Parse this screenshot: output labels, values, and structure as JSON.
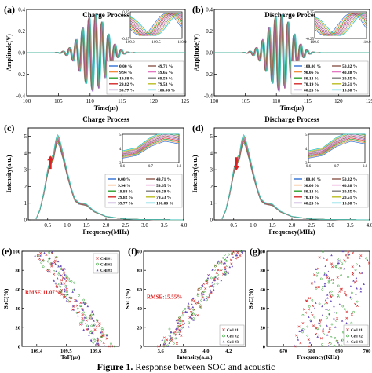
{
  "caption": {
    "label": "Figure 1.",
    "text": "Response between SOC and acoustic"
  },
  "colors": {
    "palette": [
      "#2f6fd6",
      "#f08c3a",
      "#2ca02c",
      "#d62728",
      "#9467bd",
      "#8c564b",
      "#e377c2",
      "#7f7f7f",
      "#bcbd22",
      "#17becf",
      "#4fb3d9"
    ],
    "arrow": "#e02020",
    "rmse_text": "#e02020",
    "cell1": "#d62728",
    "cell2": "#2ca02c",
    "cell3": "#6a4fbd"
  },
  "chart_data": [
    {
      "id": "a",
      "panel_label": "(a)",
      "type": "line",
      "title": "Charge Process",
      "xlabel": "Time(μs)",
      "ylabel": "Amplitude(V)",
      "xlim": [
        100,
        125
      ],
      "ylim": [
        -0.4,
        0.4
      ],
      "xticks": [
        "100",
        "105",
        "110",
        "115",
        "120",
        "125"
      ],
      "yticks": [
        "-0.4",
        "-0.2",
        "0.0",
        "0.2",
        "0.4"
      ],
      "signal": {
        "center": 110.6,
        "amplitude": 0.36,
        "period": 1.02,
        "width": 1.9
      },
      "series": [
        {
          "name": "0.00 %"
        },
        {
          "name": "9.94 %"
        },
        {
          "name": "19.88 %"
        },
        {
          "name": "29.82 %"
        },
        {
          "name": "39.77 %"
        },
        {
          "name": "49.71 %"
        },
        {
          "name": "59.65 %"
        },
        {
          "name": "69.59 %"
        },
        {
          "name": "79.53 %"
        },
        {
          "name": "100.00 %"
        }
      ],
      "legend_position": "bottom-right",
      "inset": {
        "xlim": [
          109,
          110
        ],
        "ylim": [
          -0.25,
          0.25
        ],
        "xticks": [
          "109.0",
          "109.5",
          "110.0"
        ],
        "yticks": [
          "0.25",
          "-0.25"
        ]
      }
    },
    {
      "id": "b",
      "panel_label": "(b)",
      "type": "line",
      "title": "Discharge Process",
      "xlabel": "Time(μs)",
      "ylabel": "Amplitude(V)",
      "xlim": [
        100,
        125
      ],
      "ylim": [
        -0.4,
        0.4
      ],
      "xticks": [
        "100",
        "105",
        "110",
        "115",
        "120",
        "125"
      ],
      "yticks": [
        "-0.4",
        "-0.2",
        "0.0",
        "0.2",
        "0.4"
      ],
      "signal": {
        "center": 110.6,
        "amplitude": 0.36,
        "period": 1.02,
        "width": 1.9
      },
      "series": [
        {
          "name": "100.00 %"
        },
        {
          "name": "90.06 %"
        },
        {
          "name": "80.13 %"
        },
        {
          "name": "70.19 %"
        },
        {
          "name": "60.25 %"
        },
        {
          "name": "50.32 %"
        },
        {
          "name": "40.38 %"
        },
        {
          "name": "30.45 %"
        },
        {
          "name": "20.51 %"
        },
        {
          "name": "10.58 %"
        }
      ],
      "legend_position": "bottom-right",
      "inset": {
        "xlim": [
          109,
          110
        ],
        "ylim": [
          -0.25,
          0.25
        ],
        "xticks": [
          "109.0",
          "110.0"
        ],
        "yticks": [
          "0.25",
          "-0.25"
        ]
      }
    },
    {
      "id": "c",
      "panel_label": "(c)",
      "type": "line",
      "title": "Charge Process",
      "xlabel": "Frequency(MHz)",
      "ylabel": "Intensity(a.u.)",
      "xlim": [
        0,
        4
      ],
      "ylim": [
        0,
        5.5
      ],
      "xticks": [
        "0.5",
        "1.0",
        "1.5",
        "2.0",
        "2.5",
        "3.0",
        "3.5",
        "4.0"
      ],
      "yticks": [
        "0",
        "1",
        "2",
        "3",
        "4",
        "5"
      ],
      "spectrum": {
        "x": [
          0.2,
          0.3,
          0.4,
          0.5,
          0.55,
          0.6,
          0.65,
          0.7,
          0.75,
          0.8,
          0.9,
          1.0,
          1.1,
          1.2,
          1.3,
          1.5,
          1.7,
          2.0,
          2.5,
          3.0,
          3.5,
          4.0
        ],
        "y": [
          0.05,
          0.6,
          1.6,
          2.9,
          3.3,
          3.6,
          3.8,
          4.5,
          4.9,
          4.7,
          3.8,
          2.8,
          1.9,
          1.2,
          1.0,
          0.9,
          0.5,
          0.2,
          0.05,
          0.02,
          0.01,
          0.0
        ]
      },
      "series": [
        {
          "name": "0.00 %"
        },
        {
          "name": "9.94 %"
        },
        {
          "name": "19.88 %"
        },
        {
          "name": "29.82 %"
        },
        {
          "name": "39.77 %"
        },
        {
          "name": "49.71 %"
        },
        {
          "name": "59.65 %"
        },
        {
          "name": "69.59 %"
        },
        {
          "name": "79.53 %"
        },
        {
          "name": "100.00 %"
        }
      ],
      "arrow_direction": "up",
      "legend_position": "center-right",
      "inset": {
        "xlim": [
          0.6,
          0.8
        ],
        "ylim": [
          3,
          5
        ],
        "xticks": [
          "0.6",
          "0.7",
          "0.8"
        ],
        "yticks": [
          "5",
          "4",
          "3"
        ]
      }
    },
    {
      "id": "d",
      "panel_label": "(d)",
      "type": "line",
      "title": "Discharge Process",
      "xlabel": "Frequency(MHz)",
      "ylabel": "Intensity(a.u.)",
      "xlim": [
        0,
        4
      ],
      "ylim": [
        0,
        5.5
      ],
      "xticks": [
        "0.5",
        "1.0",
        "1.5",
        "2.0",
        "2.5",
        "3.0",
        "3.5",
        "4.0"
      ],
      "yticks": [
        "0",
        "1",
        "2",
        "3",
        "4",
        "5"
      ],
      "spectrum": {
        "x": [
          0.2,
          0.3,
          0.4,
          0.5,
          0.55,
          0.6,
          0.65,
          0.7,
          0.75,
          0.8,
          0.9,
          1.0,
          1.1,
          1.2,
          1.3,
          1.5,
          1.7,
          2.0,
          2.5,
          3.0,
          3.5,
          4.0
        ],
        "y": [
          0.05,
          0.6,
          1.6,
          2.9,
          3.3,
          3.6,
          3.8,
          4.5,
          4.9,
          4.7,
          3.8,
          2.8,
          1.9,
          1.2,
          1.0,
          0.9,
          0.5,
          0.2,
          0.05,
          0.02,
          0.01,
          0.0
        ]
      },
      "series": [
        {
          "name": "100.00 %"
        },
        {
          "name": "90.06 %"
        },
        {
          "name": "80.13 %"
        },
        {
          "name": "70.19 %"
        },
        {
          "name": "60.25 %"
        },
        {
          "name": "50.32 %"
        },
        {
          "name": "40.38 %"
        },
        {
          "name": "30.45 %"
        },
        {
          "name": "20.51 %"
        },
        {
          "name": "10.58 %"
        }
      ],
      "arrow_direction": "down",
      "legend_position": "center-right",
      "inset": {
        "xlim": [
          0.6,
          0.8
        ],
        "ylim": [
          3,
          5
        ],
        "xticks": [
          "0.6",
          "0.7",
          "0.8"
        ],
        "yticks": [
          "5",
          "4",
          "3"
        ]
      }
    },
    {
      "id": "e",
      "panel_label": "(e)",
      "type": "scatter",
      "xlabel": "ToF(μs)",
      "ylabel": "SoC(%)",
      "xlim": [
        109.35,
        109.68
      ],
      "ylim": [
        0,
        100
      ],
      "xticks": [
        109.4,
        109.5,
        109.6
      ],
      "xticklabels": [
        "109.4",
        "109.5",
        "109.6"
      ],
      "yticks": [
        0,
        20,
        40,
        60,
        80,
        100
      ],
      "trend": {
        "x_at_100": 109.42,
        "x_at_0": 109.63,
        "spread": 0.045
      },
      "annotation": "RMSE:11.07%",
      "series": [
        {
          "name": "Cell #1"
        },
        {
          "name": "Cell #2"
        },
        {
          "name": "Cell #3"
        }
      ],
      "legend_position": "top-right"
    },
    {
      "id": "f",
      "panel_label": "(f)",
      "type": "scatter",
      "xlabel": "Intensity(a.u.)",
      "ylabel": "SoC(%)",
      "xlim": [
        3.45,
        4.35
      ],
      "ylim": [
        0,
        100
      ],
      "xticks": [
        3.6,
        3.8,
        4.0,
        4.2
      ],
      "xticklabels": [
        "3.6",
        "3.8",
        "4.0",
        "4.2"
      ],
      "yticks": [
        0,
        20,
        40,
        60,
        80,
        100
      ],
      "trend": {
        "x_at_100": 4.25,
        "x_at_0": 3.65,
        "spread": 0.1
      },
      "annotation": "RMSE:15.55%",
      "series": [
        {
          "name": "Cell #1"
        },
        {
          "name": "Cell #2"
        },
        {
          "name": "Cell #3"
        }
      ],
      "legend_position": "bottom-right"
    },
    {
      "id": "g",
      "panel_label": "(g)",
      "type": "scatter",
      "xlabel": "Frequency(KHz)",
      "ylabel": "SoC(%)",
      "xlim": [
        664,
        701
      ],
      "ylim": [
        0,
        100
      ],
      "xticks": [
        670,
        680,
        690,
        700
      ],
      "xticklabels": [
        "670",
        "680",
        "690",
        "700"
      ],
      "yticks": [
        0,
        20,
        40,
        60,
        80,
        100
      ],
      "trend": {
        "x_at_100": 693,
        "x_at_0": 683,
        "spread": 12
      },
      "annotation": "",
      "series": [
        {
          "name": "Cell #1"
        },
        {
          "name": "Cell #2"
        },
        {
          "name": "Cell #3"
        }
      ],
      "legend_position": "bottom-right"
    }
  ]
}
